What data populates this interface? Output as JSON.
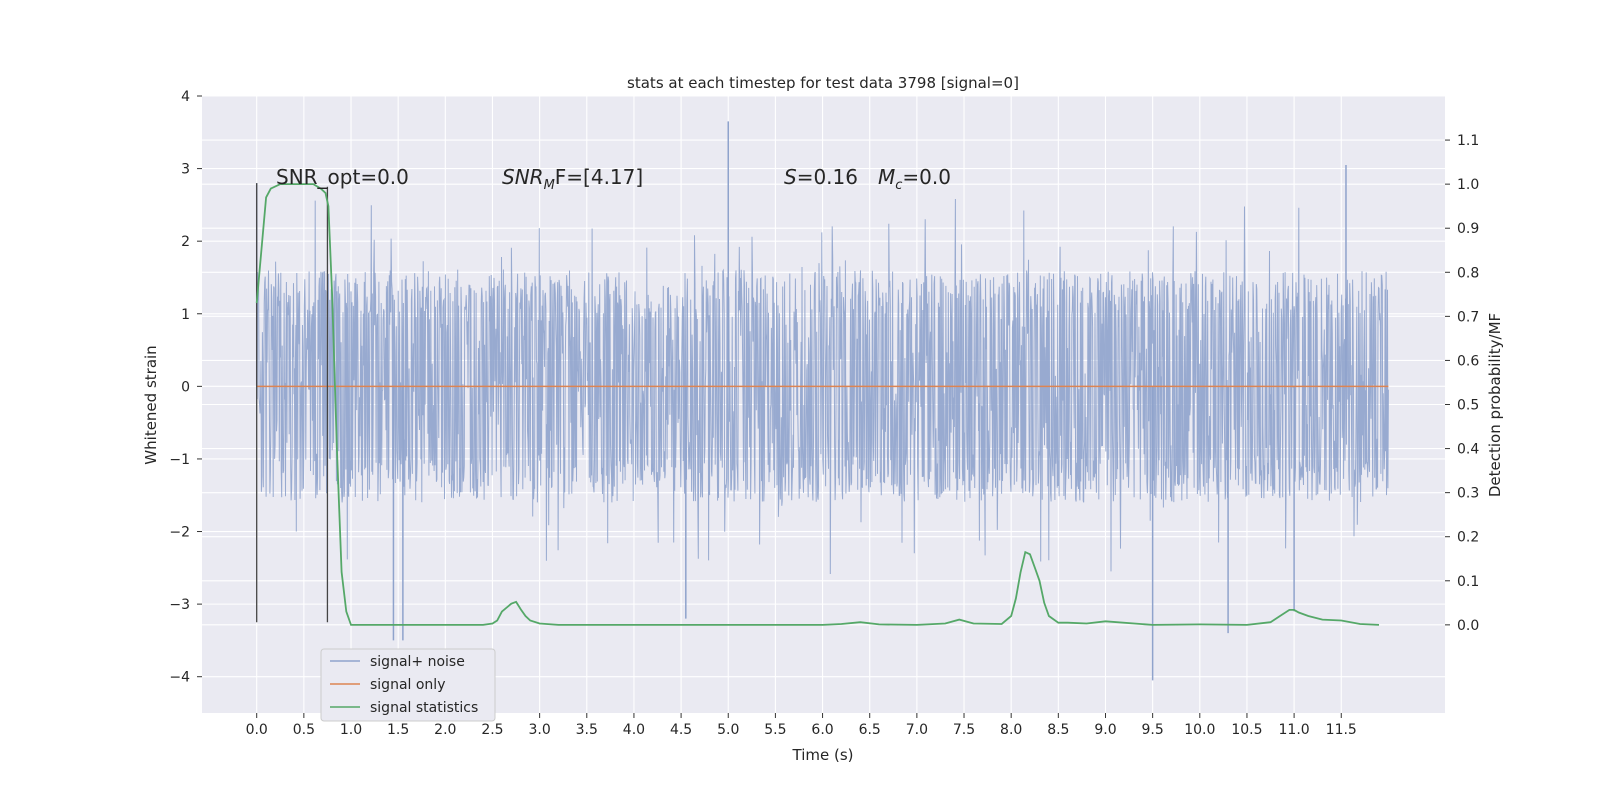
{
  "chart_data": {
    "type": "line",
    "title": "stats at each timestep for test data 3798 [signal=0]",
    "xlabel": "Time (s)",
    "ylabel": "Whitened strain",
    "y2label": "Detection probability/MF",
    "xlim": [
      -0.58,
      12.6
    ],
    "ylim": [
      -4.5,
      4.0
    ],
    "y2lim": [
      -0.2,
      1.2
    ],
    "x_ticks": [
      0.0,
      0.5,
      1.0,
      1.5,
      2.0,
      2.5,
      3.0,
      3.5,
      4.0,
      4.5,
      5.0,
      5.5,
      6.0,
      6.5,
      7.0,
      7.5,
      8.0,
      8.5,
      9.0,
      9.5,
      10.0,
      10.5,
      11.0,
      11.5
    ],
    "x_tick_labels": [
      "0.0",
      "0.5",
      "1.0",
      "1.5",
      "2.0",
      "2.5",
      "3.0",
      "3.5",
      "4.0",
      "4.5",
      "5.0",
      "5.5",
      "6.0",
      "6.5",
      "7.0",
      "7.5",
      "8.0",
      "8.5",
      "9.0",
      "9.5",
      "10.0",
      "10.5",
      "11.0",
      "11.5"
    ],
    "y_ticks": [
      -4,
      -3,
      -2,
      -1,
      0,
      1,
      2,
      3,
      4
    ],
    "y_tick_labels": [
      "−4",
      "−3",
      "−2",
      "−1",
      "0",
      "1",
      "2",
      "3",
      "4"
    ],
    "y2_ticks": [
      0.0,
      0.1,
      0.2,
      0.3,
      0.4,
      0.5,
      0.6,
      0.7,
      0.8,
      0.9,
      1.0,
      1.1
    ],
    "y2_tick_labels": [
      "0.0",
      "0.1",
      "0.2",
      "0.3",
      "0.4",
      "0.5",
      "0.6",
      "0.7",
      "0.8",
      "0.9",
      "1.0",
      "1.1"
    ],
    "grid": true,
    "legend_position": "lower-left",
    "legend": [
      "signal+ noise",
      "signal only",
      "signal statistics"
    ],
    "series": [
      {
        "name": "signal+ noise",
        "axis": "left",
        "color": "#8fa3cc",
        "x_range": [
          0.0,
          12.0
        ],
        "typical_amplitude": 1.6,
        "notable_spikes": [
          [
            0.0,
            2.8
          ],
          [
            1.45,
            -3.5
          ],
          [
            1.55,
            -3.5
          ],
          [
            4.55,
            -3.2
          ],
          [
            5.0,
            3.65
          ],
          [
            9.5,
            -4.05
          ],
          [
            10.3,
            -3.4
          ],
          [
            11.0,
            -3.1
          ],
          [
            11.55,
            3.05
          ]
        ]
      },
      {
        "name": "signal only",
        "axis": "left",
        "color": "#dd8452",
        "x": [
          0.0,
          12.0
        ],
        "y": [
          0.0,
          0.0
        ]
      },
      {
        "name": "signal statistics",
        "axis": "right",
        "color": "#55a868",
        "x": [
          0.0,
          0.05,
          0.1,
          0.15,
          0.25,
          0.4,
          0.6,
          0.68,
          0.73,
          0.76,
          0.8,
          0.85,
          0.9,
          0.95,
          1.0,
          1.2,
          2.4,
          2.5,
          2.55,
          2.6,
          2.7,
          2.75,
          2.8,
          2.85,
          2.9,
          3.0,
          3.2,
          6.0,
          6.2,
          6.4,
          6.6,
          7.0,
          7.3,
          7.45,
          7.6,
          7.9,
          8.0,
          8.05,
          8.1,
          8.15,
          8.2,
          8.25,
          8.3,
          8.35,
          8.4,
          8.5,
          8.6,
          8.8,
          9.0,
          9.5,
          10.0,
          10.5,
          10.75,
          10.85,
          10.95,
          11.0,
          11.05,
          11.15,
          11.3,
          11.5,
          11.7,
          11.9
        ],
        "y": [
          0.73,
          0.85,
          0.97,
          0.99,
          1.0,
          1.0,
          1.0,
          0.99,
          0.98,
          0.95,
          0.75,
          0.4,
          0.12,
          0.03,
          0.0,
          0.0,
          0.0,
          0.003,
          0.01,
          0.03,
          0.048,
          0.052,
          0.035,
          0.02,
          0.01,
          0.003,
          0.0,
          0.0,
          0.002,
          0.006,
          0.001,
          0.0,
          0.003,
          0.012,
          0.003,
          0.002,
          0.02,
          0.06,
          0.12,
          0.165,
          0.16,
          0.13,
          0.1,
          0.05,
          0.02,
          0.005,
          0.005,
          0.003,
          0.008,
          0.0,
          0.001,
          0.0,
          0.006,
          0.02,
          0.034,
          0.034,
          0.028,
          0.02,
          0.012,
          0.01,
          0.002,
          0.0
        ]
      }
    ],
    "vertical_markers": [
      {
        "x": 0.0,
        "y_range": [
          -3.25,
          2.8
        ]
      },
      {
        "x": 0.75,
        "y_range": [
          -3.25,
          2.75
        ]
      }
    ],
    "annotations": [
      {
        "kind": "plain",
        "text": "SNR_opt=0.0"
      },
      {
        "kind": "snr_mf",
        "text": "SNR",
        "sub": "M",
        "rest": "F=[4.17]"
      },
      {
        "kind": "italic",
        "text": "S",
        "rest": "=0.16"
      },
      {
        "kind": "mc",
        "text": "M",
        "sub": "c",
        "rest": "=0.0"
      }
    ]
  }
}
